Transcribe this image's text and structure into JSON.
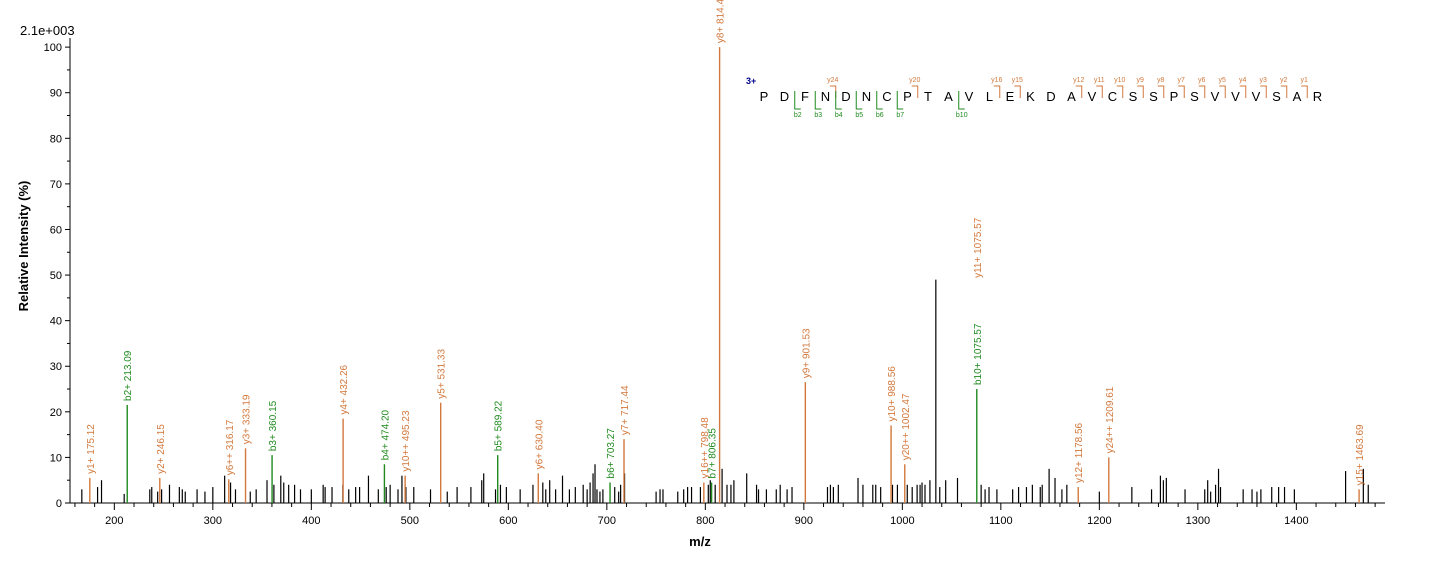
{
  "max_intensity_label": "2.1e+003",
  "chart_data": {
    "type": "bar",
    "xlabel": "m/z",
    "ylabel": "Relative   Intensity (%)",
    "xlim": [
      155,
      1490
    ],
    "ylim": [
      0,
      102
    ],
    "x_ticks": [
      200,
      300,
      400,
      500,
      600,
      700,
      800,
      900,
      1000,
      1100,
      1200,
      1300,
      1400
    ],
    "y_ticks": [
      0,
      10,
      20,
      30,
      40,
      50,
      60,
      70,
      80,
      90,
      100
    ],
    "colors": {
      "y": "#d2783c",
      "b": "#1f8a1f",
      "other": "#000000",
      "charge": "#00008b"
    },
    "annotated_peaks": [
      {
        "mz": 175.12,
        "intensity": 5.5,
        "label": "y1+ 175.12",
        "ion": "y"
      },
      {
        "mz": 213.09,
        "intensity": 21.5,
        "label": "b2+ 213.09",
        "ion": "b"
      },
      {
        "mz": 246.15,
        "intensity": 5.5,
        "label": "y2+ 246.15",
        "ion": "y"
      },
      {
        "mz": 316.17,
        "intensity": 5.2,
        "label": "y6++ 316.17",
        "ion": "y"
      },
      {
        "mz": 333.19,
        "intensity": 12.0,
        "label": "y3+ 333.19",
        "ion": "y"
      },
      {
        "mz": 360.15,
        "intensity": 10.5,
        "label": "b3+ 360.15",
        "ion": "b"
      },
      {
        "mz": 432.26,
        "intensity": 18.5,
        "label": "y4+ 432.26",
        "ion": "y"
      },
      {
        "mz": 474.2,
        "intensity": 8.5,
        "label": "b4+ 474.20",
        "ion": "b"
      },
      {
        "mz": 495.23,
        "intensity": 6.0,
        "label": "y10++ 495.23",
        "ion": "y"
      },
      {
        "mz": 531.33,
        "intensity": 22.0,
        "label": "y5+ 531.33",
        "ion": "y"
      },
      {
        "mz": 589.22,
        "intensity": 10.5,
        "label": "b5+ 589.22",
        "ion": "b"
      },
      {
        "mz": 630.4,
        "intensity": 6.5,
        "label": "y6+ 630.40",
        "ion": "y"
      },
      {
        "mz": 703.27,
        "intensity": 4.5,
        "label": "b6+ 703.27",
        "ion": "b"
      },
      {
        "mz": 717.44,
        "intensity": 14.0,
        "label": "y7+ 717.44",
        "ion": "y"
      },
      {
        "mz": 798.48,
        "intensity": 4.5,
        "label": "y16++ 798.48",
        "ion": "y"
      },
      {
        "mz": 806.35,
        "intensity": 4.5,
        "label": "b7+ 806.35",
        "ion": "b"
      },
      {
        "mz": 814.48,
        "intensity": 100.0,
        "label": "y8+ 814.48",
        "ion": "y"
      },
      {
        "mz": 901.53,
        "intensity": 26.5,
        "label": "y9+ 901.53",
        "ion": "y"
      },
      {
        "mz": 988.56,
        "intensity": 17.0,
        "label": "y10+ 988.56",
        "ion": "y"
      },
      {
        "mz": 1002.47,
        "intensity": 8.5,
        "label": "y20++ 1002.47",
        "ion": "y"
      },
      {
        "mz": 1075.57,
        "intensity": 25.0,
        "label": "b10+ 1075.57",
        "ion": "b"
      },
      {
        "mz": 1075.57,
        "intensity": 48.5,
        "label": "y11+ 1075.57",
        "ion": "y",
        "stack": true
      },
      {
        "mz": 1178.56,
        "intensity": 3.5,
        "label": "y12+ 1178.56",
        "ion": "y"
      },
      {
        "mz": 1209.61,
        "intensity": 10.0,
        "label": "y24++ 1209.61",
        "ion": "y"
      },
      {
        "mz": 1463.69,
        "intensity": 3.0,
        "label": "y15+ 1463.69",
        "ion": "y"
      }
    ],
    "unannotated_peaks": [
      [
        167,
        3
      ],
      [
        183,
        3.5
      ],
      [
        187,
        5
      ],
      [
        210,
        2
      ],
      [
        236,
        3
      ],
      [
        238,
        3.5
      ],
      [
        244,
        2.5
      ],
      [
        248,
        3
      ],
      [
        256,
        4
      ],
      [
        266,
        3.5
      ],
      [
        269,
        3
      ],
      [
        272,
        2.5
      ],
      [
        284,
        3
      ],
      [
        292,
        2.5
      ],
      [
        300,
        3.5
      ],
      [
        312,
        6
      ],
      [
        318,
        4.5
      ],
      [
        323,
        3
      ],
      [
        338,
        2.5
      ],
      [
        344,
        3
      ],
      [
        355,
        5
      ],
      [
        362,
        4
      ],
      [
        369,
        6
      ],
      [
        372,
        4.5
      ],
      [
        377,
        4
      ],
      [
        383,
        4
      ],
      [
        389,
        3
      ],
      [
        400,
        3
      ],
      [
        412,
        4
      ],
      [
        414,
        3.5
      ],
      [
        421,
        3.5
      ],
      [
        432,
        4
      ],
      [
        438,
        3
      ],
      [
        445,
        3.5
      ],
      [
        449,
        3.5
      ],
      [
        458,
        6
      ],
      [
        468,
        3
      ],
      [
        476,
        3.5
      ],
      [
        480,
        4
      ],
      [
        488,
        3
      ],
      [
        492,
        6
      ],
      [
        496,
        3.5
      ],
      [
        504,
        3.5
      ],
      [
        521,
        3
      ],
      [
        538,
        2.5
      ],
      [
        548,
        3.5
      ],
      [
        562,
        3.5
      ],
      [
        573,
        5
      ],
      [
        575,
        6.5
      ],
      [
        587,
        3
      ],
      [
        592,
        4
      ],
      [
        598,
        3.5
      ],
      [
        612,
        3
      ],
      [
        625,
        4
      ],
      [
        635,
        4.5
      ],
      [
        638,
        3
      ],
      [
        642,
        5
      ],
      [
        648,
        3
      ],
      [
        655,
        6
      ],
      [
        662,
        3
      ],
      [
        668,
        3.5
      ],
      [
        676,
        4
      ],
      [
        680,
        3
      ],
      [
        683,
        4.5
      ],
      [
        686,
        6.5
      ],
      [
        688,
        8.5
      ],
      [
        690,
        3
      ],
      [
        693,
        2.5
      ],
      [
        696,
        3
      ],
      [
        708,
        3.5
      ],
      [
        712,
        2.5
      ],
      [
        714,
        4
      ],
      [
        718,
        6.5
      ],
      [
        750,
        2.5
      ],
      [
        754,
        3
      ],
      [
        757,
        3
      ],
      [
        772,
        2.5
      ],
      [
        778,
        3
      ],
      [
        782,
        3.5
      ],
      [
        786,
        3.5
      ],
      [
        795,
        3.5
      ],
      [
        803,
        4
      ],
      [
        805,
        5
      ],
      [
        810,
        4
      ],
      [
        817,
        7.5
      ],
      [
        822,
        4
      ],
      [
        826,
        4
      ],
      [
        829,
        5
      ],
      [
        842,
        6.5
      ],
      [
        852,
        4
      ],
      [
        854,
        3
      ],
      [
        862,
        3
      ],
      [
        872,
        3
      ],
      [
        876,
        4
      ],
      [
        883,
        3
      ],
      [
        888,
        3.5
      ],
      [
        924,
        3.5
      ],
      [
        927,
        4
      ],
      [
        930,
        3.5
      ],
      [
        935,
        4
      ],
      [
        955,
        5.5
      ],
      [
        960,
        4
      ],
      [
        970,
        4
      ],
      [
        973,
        4
      ],
      [
        978,
        3.5
      ],
      [
        990,
        4
      ],
      [
        995,
        4
      ],
      [
        1005,
        4
      ],
      [
        1010,
        3.5
      ],
      [
        1015,
        4
      ],
      [
        1018,
        4
      ],
      [
        1020,
        4.5
      ],
      [
        1023,
        4
      ],
      [
        1028,
        5
      ],
      [
        1034,
        49
      ],
      [
        1038,
        3.5
      ],
      [
        1044,
        5
      ],
      [
        1056,
        5.5
      ],
      [
        1080,
        4
      ],
      [
        1084,
        3
      ],
      [
        1088,
        3.5
      ],
      [
        1096,
        3
      ],
      [
        1112,
        3
      ],
      [
        1118,
        3.5
      ],
      [
        1126,
        3.5
      ],
      [
        1132,
        4
      ],
      [
        1140,
        3.5
      ],
      [
        1142,
        4
      ],
      [
        1149,
        7.5
      ],
      [
        1155,
        5.5
      ],
      [
        1162,
        3
      ],
      [
        1167,
        4
      ],
      [
        1200,
        2.5
      ],
      [
        1233,
        3.5
      ],
      [
        1253,
        3
      ],
      [
        1262,
        6
      ],
      [
        1265,
        5
      ],
      [
        1268,
        5.5
      ],
      [
        1287,
        3
      ],
      [
        1307,
        3
      ],
      [
        1310,
        5
      ],
      [
        1313,
        2.5
      ],
      [
        1318,
        4
      ],
      [
        1321,
        7.5
      ],
      [
        1323,
        3.5
      ],
      [
        1346,
        3
      ],
      [
        1355,
        3
      ],
      [
        1360,
        2.5
      ],
      [
        1364,
        3
      ],
      [
        1375,
        3.5
      ],
      [
        1382,
        3.5
      ],
      [
        1388,
        3.5
      ],
      [
        1398,
        3
      ],
      [
        1450,
        7
      ],
      [
        1468,
        7.5
      ],
      [
        1473,
        4
      ]
    ],
    "sequence": {
      "charge": "3+",
      "residues": [
        "P",
        "D",
        "F",
        "N",
        "D",
        "N",
        "C",
        "P",
        "T",
        "A",
        "V",
        "L",
        "E",
        "K",
        "D",
        "A",
        "V",
        "C",
        "S",
        "S",
        "P",
        "S",
        "V",
        "V",
        "V",
        "S",
        "A",
        "R"
      ],
      "y_ions": [
        {
          "after_residue": 4,
          "label": "y24"
        },
        {
          "after_residue": 8,
          "label": "y20"
        },
        {
          "after_residue": 12,
          "label": "y16"
        },
        {
          "after_residue": 13,
          "label": "y15"
        },
        {
          "after_residue": 16,
          "label": "y12"
        },
        {
          "after_residue": 17,
          "label": "y11"
        },
        {
          "after_residue": 18,
          "label": "y10"
        },
        {
          "after_residue": 19,
          "label": "y9"
        },
        {
          "after_residue": 20,
          "label": "y8"
        },
        {
          "after_residue": 21,
          "label": "y7"
        },
        {
          "after_residue": 22,
          "label": "y6"
        },
        {
          "after_residue": 23,
          "label": "y5"
        },
        {
          "after_residue": 24,
          "label": "y4"
        },
        {
          "after_residue": 25,
          "label": "y3"
        },
        {
          "after_residue": 26,
          "label": "y2"
        },
        {
          "after_residue": 27,
          "label": "y1"
        }
      ],
      "b_ions": [
        {
          "after_residue": 2,
          "label": "b2"
        },
        {
          "after_residue": 3,
          "label": "b3"
        },
        {
          "after_residue": 4,
          "label": "b4"
        },
        {
          "after_residue": 5,
          "label": "b5"
        },
        {
          "after_residue": 6,
          "label": "b6"
        },
        {
          "after_residue": 7,
          "label": "b7"
        },
        {
          "after_residue": 10,
          "label": "b10"
        }
      ]
    }
  }
}
